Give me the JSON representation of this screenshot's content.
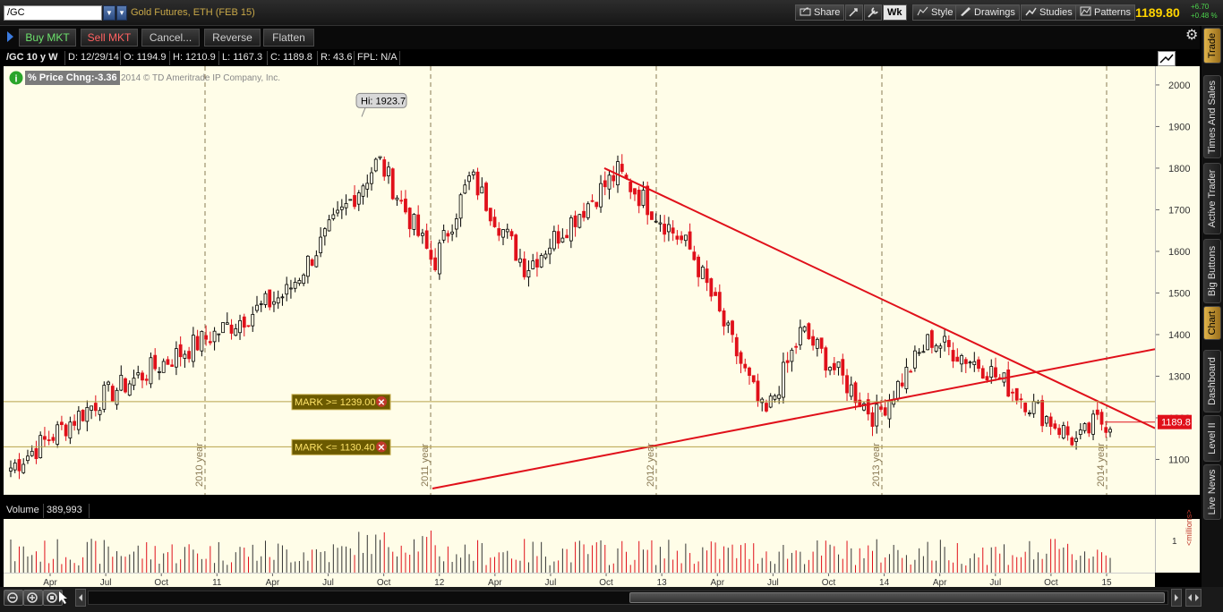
{
  "topbar": {
    "symbol": "/GC",
    "description": "Gold Futures, ETH (FEB 15)",
    "share": "Share",
    "wk": "Wk",
    "style": "Style",
    "drawings": "Drawings",
    "studies": "Studies",
    "patterns": "Patterns",
    "last_price": "1189.80",
    "change": "+6.70",
    "change_pct": "+0.48 %"
  },
  "orderbar": {
    "buy": "Buy MKT",
    "sell": "Sell MKT",
    "cancel": "Cancel...",
    "reverse": "Reverse",
    "flatten": "Flatten"
  },
  "chart_header": {
    "title": "/GC 10 y W",
    "date": "D: 12/29/14",
    "open": "O: 1194.9",
    "high": "H: 1210.9",
    "low": "L: 1167.3",
    "close": "C: 1189.8",
    "range": "R: 43.6",
    "fpl": "FPL: N/A"
  },
  "study_label": "% Price Chng:-3.36",
  "copyright": "2014 © TD Ameritrade IP Company, Inc.",
  "hi_bubble": "Hi: 1923.7",
  "marks": [
    {
      "label": "MARK >= 1239.00",
      "price": 1239
    },
    {
      "label": "MARK <= 1130.40",
      "price": 1130.4
    }
  ],
  "price_tag": "1189.8",
  "volume_header": {
    "label": "Volume",
    "value": "389,993"
  },
  "volume_axis": {
    "tick": "1",
    "unit": "<millions>"
  },
  "sidebar": [
    "Trade",
    "Times And Sales",
    "Active Trader",
    "Big Buttons",
    "Chart",
    "Dashboard",
    "Level II",
    "Live News"
  ],
  "colors": {
    "up": "#000000",
    "down": "#e0101a",
    "trendline": "#e0101a",
    "mark_fill": "#6b5a00",
    "mark_text": "#ffe46a",
    "background": "#fffde8"
  },
  "chart_data": {
    "type": "candlestick",
    "interval": "weekly",
    "price_ticks": [
      1100,
      1200,
      1300,
      1400,
      1500,
      1600,
      1700,
      1800,
      1900,
      2000
    ],
    "ylim": [
      1015,
      2045
    ],
    "time_labels": [
      "Apr",
      "Jul",
      "Oct",
      "11",
      "Apr",
      "Jul",
      "Oct",
      "12",
      "Apr",
      "Jul",
      "Oct",
      "13",
      "Apr",
      "Jul",
      "Oct",
      "14",
      "Apr",
      "Jul",
      "Oct",
      "15"
    ],
    "year_labels": [
      "2010 year",
      "2011 year",
      "2012 year",
      "2013 year",
      "2014 year"
    ],
    "key_points": [
      {
        "date": "2010-01",
        "close": 1080
      },
      {
        "date": "2010-06",
        "close": 1250
      },
      {
        "date": "2010-12",
        "close": 1400
      },
      {
        "date": "2011-04",
        "close": 1500
      },
      {
        "date": "2011-09",
        "high": 1923.7,
        "close": 1820
      },
      {
        "date": "2011-12",
        "close": 1570
      },
      {
        "date": "2012-02",
        "close": 1780
      },
      {
        "date": "2012-05",
        "close": 1560
      },
      {
        "date": "2012-10",
        "close": 1790
      },
      {
        "date": "2013-02",
        "close": 1600
      },
      {
        "date": "2013-04",
        "close": 1400
      },
      {
        "date": "2013-06",
        "close": 1200
      },
      {
        "date": "2013-08",
        "close": 1410
      },
      {
        "date": "2013-12",
        "close": 1200
      },
      {
        "date": "2014-03",
        "close": 1390
      },
      {
        "date": "2014-06",
        "close": 1320
      },
      {
        "date": "2014-11",
        "close": 1140
      },
      {
        "date": "2014-12",
        "close": 1189.8
      }
    ]
  }
}
